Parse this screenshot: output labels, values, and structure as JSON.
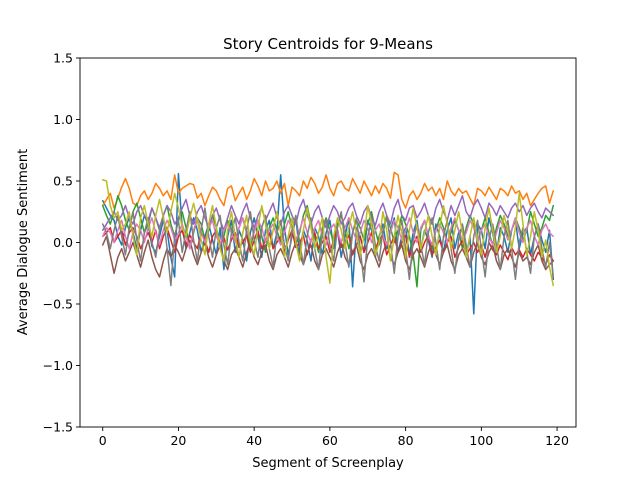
{
  "chart_data": {
    "type": "line",
    "title": "Story Centroids for 9-Means",
    "xlabel": "Segment of Screenplay",
    "ylabel": "Average Dialogue Sentiment",
    "xlim": [
      -6,
      125
    ],
    "ylim": [
      -1.5,
      1.5
    ],
    "xticks": [
      0,
      20,
      40,
      60,
      80,
      100,
      120
    ],
    "xtick_labels": [
      "0",
      "20",
      "40",
      "60",
      "80",
      "100",
      "120"
    ],
    "yticks": [
      -1.5,
      -1.0,
      -0.5,
      0.0,
      0.5,
      1.0,
      1.5
    ],
    "ytick_labels": [
      "−1.5",
      "−1.0",
      "−0.5",
      "0.0",
      "0.5",
      "1.0",
      "1.5"
    ],
    "grid": false,
    "legend": "none",
    "x": {
      "start": 0,
      "end": 119,
      "step": 1
    },
    "series": [
      {
        "color": "#1f77b4",
        "values": [
          0.34,
          0.28,
          0.22,
          0.18,
          0.05,
          -0.02,
          0.12,
          0.2,
          0.08,
          -0.05,
          0.1,
          0.22,
          0.15,
          -0.03,
          -0.08,
          0.05,
          0.18,
          0.1,
          -0.12,
          -0.28,
          0.56,
          0.12,
          -0.05,
          0.08,
          0.2,
          0.1,
          -0.08,
          0.05,
          0.15,
          0.02,
          -0.1,
          0.12,
          -0.22,
          0.05,
          0.18,
          -0.08,
          0.1,
          0.02,
          -0.15,
          0.08,
          0.2,
          0.05,
          -0.12,
          0.1,
          0.18,
          -0.05,
          0.08,
          0.55,
          0.12,
          -0.1,
          0.05,
          0.2,
          -0.08,
          0.1,
          0.02,
          -0.15,
          0.12,
          0.05,
          -0.1,
          0.08,
          0.18,
          -0.05,
          0.1,
          -0.12,
          0.05,
          0.2,
          -0.36,
          0.12,
          0.05,
          -0.08,
          0.18,
          0.1,
          -0.12,
          0.05,
          0.15,
          -0.05,
          0.1,
          0.2,
          -0.08,
          0.05,
          0.12,
          -0.1,
          0.08,
          0.18,
          -0.05,
          0.1,
          0.02,
          -0.12,
          0.15,
          0.05,
          -0.08,
          0.1,
          0.2,
          -0.05,
          0.08,
          0.12,
          -0.1,
          0.05,
          -0.58,
          0.15,
          0.1,
          -0.05,
          0.2,
          0.08,
          -0.1,
          0.12,
          0.05,
          -0.08,
          0.1,
          0.18,
          -0.05,
          0.08,
          0.12,
          -0.1,
          0.05,
          0.15,
          0.02,
          -0.08,
          0.1,
          -0.3
        ]
      },
      {
        "color": "#ff7f0e",
        "values": [
          0.3,
          0.35,
          0.4,
          0.28,
          0.36,
          0.45,
          0.52,
          0.44,
          0.32,
          0.3,
          0.38,
          0.42,
          0.35,
          0.4,
          0.48,
          0.44,
          0.38,
          0.42,
          0.35,
          0.55,
          0.4,
          0.44,
          0.46,
          0.48,
          0.47,
          0.36,
          0.4,
          0.3,
          0.38,
          0.45,
          0.42,
          0.35,
          0.3,
          0.44,
          0.46,
          0.34,
          0.4,
          0.45,
          0.35,
          0.42,
          0.52,
          0.46,
          0.38,
          0.5,
          0.42,
          0.44,
          0.5,
          0.4,
          0.48,
          0.3,
          0.45,
          0.42,
          0.38,
          0.5,
          0.44,
          0.53,
          0.48,
          0.4,
          0.45,
          0.55,
          0.44,
          0.38,
          0.48,
          0.5,
          0.44,
          0.42,
          0.52,
          0.46,
          0.4,
          0.5,
          0.44,
          0.38,
          0.46,
          0.4,
          0.48,
          0.44,
          0.36,
          0.57,
          0.55,
          0.35,
          0.28,
          0.38,
          0.42,
          0.35,
          0.4,
          0.48,
          0.42,
          0.45,
          0.38,
          0.44,
          0.35,
          0.5,
          0.42,
          0.38,
          0.44,
          0.4,
          0.42,
          0.36,
          0.3,
          0.44,
          0.42,
          0.38,
          0.45,
          0.4,
          0.35,
          0.44,
          0.42,
          0.38,
          0.46,
          0.4,
          0.42,
          0.35,
          0.4,
          0.3,
          0.35,
          0.4,
          0.44,
          0.46,
          0.32,
          0.42
        ]
      },
      {
        "color": "#2ca02c",
        "values": [
          0.3,
          0.22,
          0.15,
          0.25,
          0.38,
          0.3,
          0.18,
          0.1,
          0.25,
          0.32,
          0.2,
          0.08,
          0.15,
          0.28,
          0.2,
          0.1,
          0.22,
          0.3,
          0.15,
          0.05,
          0.18,
          0.25,
          0.12,
          -0.05,
          0.08,
          0.2,
          0.15,
          0.02,
          0.1,
          0.22,
          0.12,
          -0.02,
          0.05,
          0.18,
          0.1,
          0.0,
          0.12,
          0.2,
          0.08,
          -0.05,
          0.1,
          0.18,
          0.05,
          -0.08,
          0.12,
          0.2,
          0.1,
          0.0,
          0.15,
          0.25,
          0.12,
          -0.02,
          0.08,
          0.22,
          0.3,
          0.15,
          0.05,
          -0.08,
          0.12,
          0.2,
          0.1,
          0.0,
          0.15,
          0.22,
          0.1,
          -0.05,
          0.08,
          0.18,
          0.12,
          0.02,
          0.15,
          0.25,
          0.1,
          -0.02,
          0.08,
          0.2,
          0.12,
          0.0,
          0.1,
          0.22,
          0.15,
          0.05,
          -0.1,
          -0.36,
          0.1,
          0.18,
          0.05,
          -0.05,
          0.1,
          0.2,
          0.12,
          0.0,
          0.08,
          0.18,
          0.1,
          -0.05,
          0.12,
          0.22,
          0.15,
          0.02,
          0.1,
          0.2,
          0.08,
          -0.02,
          0.12,
          0.22,
          0.15,
          0.05,
          0.1,
          0.2,
          0.12,
          0.02,
          0.1,
          0.25,
          0.15,
          0.05,
          0.12,
          0.22,
          0.18,
          0.3
        ]
      },
      {
        "color": "#d62728",
        "values": [
          0.05,
          0.08,
          0.12,
          0.0,
          0.05,
          0.1,
          -0.02,
          0.08,
          0.12,
          0.05,
          -0.05,
          0.02,
          0.08,
          0.0,
          0.1,
          -0.05,
          0.05,
          0.12,
          0.02,
          -0.08,
          0.05,
          0.1,
          -0.02,
          0.06,
          0.0,
          -0.05,
          0.08,
          0.02,
          -0.08,
          0.05,
          0.1,
          -0.02,
          0.04,
          -0.06,
          0.02,
          0.08,
          -0.04,
          0.0,
          0.06,
          -0.08,
          0.02,
          0.1,
          -0.05,
          0.02,
          0.08,
          -0.05,
          0.0,
          0.05,
          -0.08,
          0.02,
          0.1,
          -0.04,
          0.0,
          0.06,
          -0.1,
          0.02,
          0.08,
          -0.05,
          0.0,
          0.05,
          -0.08,
          0.02,
          0.1,
          -0.04,
          0.0,
          0.06,
          -0.1,
          -0.02,
          0.05,
          -0.08,
          0.0,
          0.08,
          -0.05,
          0.02,
          0.06,
          -0.1,
          -0.02,
          0.05,
          -0.08,
          0.0,
          0.06,
          -0.12,
          -0.02,
          0.05,
          -0.08,
          0.0,
          0.06,
          -0.1,
          -0.04,
          0.02,
          -0.08,
          0.0,
          0.05,
          -0.12,
          -0.04,
          0.02,
          -0.1,
          -0.05,
          0.0,
          -0.08,
          -0.02,
          -0.12,
          0.0,
          -0.06,
          -0.1,
          -0.02,
          -0.08,
          -0.14,
          -0.04,
          -0.1,
          -0.06,
          -0.12,
          -0.05,
          -0.1,
          -0.15,
          -0.08,
          -0.12,
          -0.18,
          -0.1,
          -0.15
        ]
      },
      {
        "color": "#9467bd",
        "values": [
          0.1,
          0.15,
          0.2,
          0.25,
          0.18,
          0.22,
          0.3,
          0.2,
          0.15,
          0.25,
          0.3,
          0.22,
          0.18,
          0.28,
          0.2,
          0.12,
          0.22,
          0.3,
          0.25,
          0.15,
          0.2,
          0.28,
          0.35,
          0.22,
          0.15,
          0.25,
          0.3,
          0.2,
          0.12,
          0.22,
          0.28,
          0.18,
          0.1,
          0.2,
          0.3,
          0.22,
          0.15,
          0.25,
          0.32,
          0.2,
          0.12,
          0.22,
          0.28,
          0.18,
          0.25,
          0.32,
          0.2,
          0.14,
          0.25,
          0.3,
          0.22,
          0.15,
          0.28,
          0.35,
          0.22,
          0.15,
          0.25,
          0.3,
          0.2,
          0.12,
          0.22,
          0.3,
          0.25,
          0.15,
          0.2,
          0.28,
          0.32,
          0.22,
          0.15,
          0.25,
          0.3,
          0.2,
          0.14,
          0.25,
          0.32,
          0.22,
          0.15,
          0.28,
          0.35,
          0.22,
          0.18,
          0.28,
          0.3,
          0.2,
          0.25,
          0.32,
          0.22,
          0.15,
          0.28,
          0.35,
          0.25,
          0.18,
          0.3,
          0.22,
          0.3,
          0.38,
          0.25,
          0.2,
          0.3,
          0.35,
          0.28,
          0.2,
          0.32,
          0.28,
          0.22,
          0.3,
          0.25,
          0.2,
          0.28,
          0.32,
          0.25,
          0.3,
          0.22,
          0.28,
          0.32,
          0.25,
          0.2,
          0.28,
          0.25,
          0.22
        ]
      },
      {
        "color": "#8c564b",
        "values": [
          -0.02,
          0.05,
          -0.1,
          -0.25,
          -0.12,
          -0.05,
          -0.15,
          -0.08,
          0.0,
          -0.1,
          -0.2,
          -0.08,
          0.02,
          -0.12,
          -0.22,
          -0.28,
          -0.15,
          -0.05,
          -0.12,
          -0.02,
          -0.08,
          -0.15,
          -0.05,
          0.02,
          -0.1,
          -0.18,
          -0.08,
          0.0,
          -0.12,
          -0.2,
          -0.1,
          -0.02,
          -0.15,
          -0.22,
          -0.1,
          -0.05,
          -0.12,
          -0.2,
          -0.08,
          0.0,
          -0.12,
          -0.18,
          -0.08,
          -0.02,
          -0.15,
          -0.22,
          -0.1,
          -0.05,
          -0.12,
          -0.2,
          -0.08,
          0.0,
          -0.1,
          -0.18,
          -0.08,
          -0.02,
          -0.15,
          -0.22,
          -0.1,
          -0.05,
          -0.12,
          -0.2,
          -0.08,
          0.0,
          -0.12,
          -0.18,
          -0.08,
          -0.02,
          -0.15,
          -0.22,
          -0.1,
          -0.05,
          -0.12,
          -0.2,
          -0.08,
          0.0,
          -0.12,
          -0.18,
          -0.08,
          -0.02,
          -0.15,
          -0.22,
          -0.1,
          -0.05,
          -0.12,
          -0.2,
          -0.08,
          0.0,
          -0.1,
          -0.18,
          -0.08,
          -0.02,
          -0.15,
          -0.22,
          -0.1,
          -0.05,
          -0.12,
          -0.2,
          -0.08,
          0.0,
          -0.12,
          -0.18,
          -0.08,
          -0.02,
          -0.15,
          -0.22,
          -0.1,
          -0.05,
          -0.12,
          -0.2,
          -0.08,
          -0.15,
          -0.12,
          -0.18,
          -0.08,
          -0.02,
          -0.15,
          -0.22,
          -0.18,
          -0.15
        ]
      },
      {
        "color": "#e377c2",
        "values": [
          0.05,
          0.12,
          0.08,
          0.0,
          0.1,
          0.18,
          0.05,
          -0.05,
          0.08,
          0.15,
          0.1,
          0.0,
          0.12,
          0.2,
          0.08,
          -0.02,
          0.1,
          0.18,
          0.12,
          0.02,
          0.08,
          0.15,
          0.05,
          -0.05,
          0.1,
          0.2,
          0.08,
          0.0,
          0.12,
          0.18,
          0.05,
          -0.02,
          0.1,
          0.15,
          0.08,
          0.0,
          0.12,
          0.2,
          0.1,
          0.02,
          0.08,
          0.18,
          0.12,
          0.0,
          0.1,
          0.15,
          0.05,
          -0.02,
          0.08,
          0.18,
          0.12,
          0.02,
          0.1,
          0.2,
          0.08,
          0.0,
          0.12,
          0.18,
          0.05,
          -0.02,
          0.1,
          0.15,
          0.08,
          0.0,
          0.12,
          0.2,
          0.1,
          0.02,
          0.08,
          0.18,
          0.12,
          0.0,
          0.1,
          0.15,
          0.05,
          -0.02,
          0.08,
          0.18,
          0.12,
          0.02,
          0.1,
          0.2,
          0.08,
          0.0,
          0.12,
          0.18,
          0.05,
          -0.02,
          0.1,
          0.15,
          0.08,
          0.0,
          0.12,
          0.2,
          0.1,
          0.02,
          0.08,
          0.18,
          0.12,
          0.0,
          0.1,
          0.15,
          0.05,
          -0.02,
          0.08,
          0.18,
          0.12,
          0.02,
          0.1,
          0.2,
          0.08,
          0.0,
          0.12,
          0.18,
          0.05,
          -0.02,
          0.1,
          0.15,
          0.08,
          0.05
        ]
      },
      {
        "color": "#7f7f7f",
        "values": [
          0.15,
          0.08,
          -0.05,
          0.1,
          0.22,
          0.05,
          -0.1,
          0.12,
          0.25,
          0.02,
          -0.15,
          0.08,
          0.2,
          0.0,
          -0.12,
          0.1,
          0.22,
          -0.05,
          -0.35,
          0.05,
          0.18,
          -0.08,
          0.1,
          0.25,
          0.02,
          -0.15,
          0.1,
          0.28,
          0.05,
          -0.12,
          0.12,
          0.22,
          -0.02,
          -0.18,
          0.08,
          0.2,
          0.0,
          -0.15,
          0.1,
          0.25,
          0.02,
          -0.12,
          0.12,
          0.22,
          -0.05,
          -0.2,
          0.08,
          0.18,
          -0.02,
          -0.15,
          0.1,
          0.22,
          0.0,
          -0.18,
          0.05,
          0.2,
          -0.05,
          -0.22,
          0.08,
          0.18,
          -0.02,
          -0.15,
          0.12,
          0.25,
          0.0,
          -0.2,
          0.08,
          0.2,
          -0.05,
          -0.32,
          0.05,
          0.18,
          -0.02,
          -0.15,
          0.1,
          0.22,
          0.0,
          -0.25,
          0.05,
          0.18,
          -0.05,
          -0.3,
          0.02,
          0.15,
          -0.02,
          -0.18,
          0.08,
          0.2,
          0.0,
          -0.22,
          0.05,
          0.18,
          -0.05,
          -0.25,
          0.02,
          0.15,
          -0.02,
          -0.2,
          0.05,
          0.18,
          -0.05,
          -0.28,
          0.02,
          0.15,
          -0.02,
          -0.22,
          0.05,
          0.18,
          -0.05,
          -0.3,
          0.0,
          0.12,
          -0.08,
          -0.25,
          0.05,
          0.15,
          -0.05,
          -0.2,
          0.0,
          -0.28
        ]
      },
      {
        "color": "#bcbd22",
        "values": [
          0.51,
          0.5,
          0.3,
          0.2,
          0.25,
          0.1,
          0.15,
          0.25,
          0.05,
          -0.1,
          0.2,
          0.3,
          0.15,
          0.05,
          0.22,
          0.35,
          0.2,
          0.08,
          0.25,
          0.4,
          0.28,
          0.12,
          0.05,
          0.2,
          0.32,
          0.18,
          0.02,
          -0.1,
          0.15,
          0.3,
          0.12,
          -0.05,
          -0.15,
          0.1,
          0.25,
          0.05,
          -0.12,
          0.08,
          0.22,
          0.0,
          -0.1,
          0.12,
          0.3,
          0.15,
          -0.05,
          0.1,
          0.25,
          0.08,
          -0.12,
          0.05,
          0.2,
          0.0,
          -0.15,
          0.1,
          0.28,
          0.12,
          -0.05,
          0.08,
          0.2,
          -0.12,
          -0.33,
          0.05,
          0.2,
          0.1,
          -0.05,
          0.12,
          0.25,
          0.08,
          -0.1,
          0.05,
          0.3,
          0.15,
          -0.1,
          0.0,
          0.25,
          0.1,
          -0.15,
          0.05,
          0.22,
          0.08,
          -0.12,
          0.1,
          0.28,
          0.12,
          -0.05,
          0.08,
          0.22,
          0.05,
          -0.1,
          0.12,
          0.3,
          0.15,
          -0.05,
          0.1,
          0.25,
          0.08,
          -0.12,
          0.05,
          0.2,
          0.02,
          -0.1,
          0.12,
          0.28,
          0.1,
          -0.08,
          0.05,
          0.22,
          0.1,
          -0.05,
          0.12,
          0.4,
          0.15,
          -0.1,
          0.05,
          0.25,
          0.1,
          -0.12,
          0.02,
          -0.2,
          -0.35
        ]
      }
    ]
  }
}
